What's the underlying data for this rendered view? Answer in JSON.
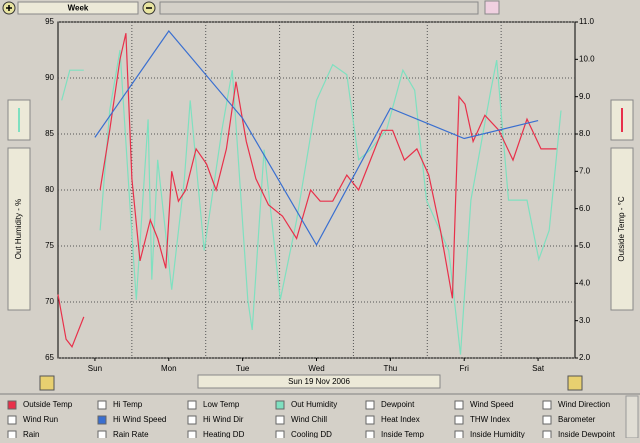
{
  "toolbar": {
    "period": "Week"
  },
  "date_label": "Sun 19 Nov 2006",
  "left_axis_title": "Out Humidity - %",
  "right_axis_title": "Outside Temp - °C",
  "chart_data": {
    "type": "line",
    "xlim": [
      -0.5,
      6.5
    ],
    "xticks": [
      {
        "value": 0,
        "label": "Sun"
      },
      {
        "value": 1,
        "label": "Mon"
      },
      {
        "value": 2,
        "label": "Tue"
      },
      {
        "value": 3,
        "label": "Wed"
      },
      {
        "value": 4,
        "label": "Thu"
      },
      {
        "value": 5,
        "label": "Fri"
      },
      {
        "value": 6,
        "label": "Sat"
      }
    ],
    "ylim": [
      65,
      95
    ],
    "yticks": [
      65,
      70,
      75,
      80,
      85,
      90,
      95
    ],
    "y2lim": [
      2,
      11
    ],
    "y2ticks": [
      {
        "value": 2,
        "label": "2.0"
      },
      {
        "value": 3,
        "label": "3.0"
      },
      {
        "value": 4,
        "label": "4.0"
      },
      {
        "value": 5,
        "label": "5.0"
      },
      {
        "value": 6,
        "label": "6.0"
      },
      {
        "value": 7,
        "label": "7.0"
      },
      {
        "value": 8,
        "label": "8.0"
      },
      {
        "value": 9,
        "label": "9.0"
      },
      {
        "value": 10,
        "label": "10.0"
      },
      {
        "value": 11,
        "label": "11.0"
      }
    ],
    "grid": true,
    "series": [
      {
        "color": "#7fe0c0",
        "axis": "y",
        "x": [
          -0.45,
          -0.34,
          -0.15,
          -0.04,
          0.07,
          0.2,
          0.34,
          0.47,
          0.56,
          0.72,
          0.77,
          0.85,
          1.04,
          1.21,
          1.29,
          1.48,
          1.72,
          1.86,
          2.07,
          2.13,
          2.29,
          2.51,
          2.73,
          3.0,
          3.22,
          3.41,
          3.57,
          3.73,
          3.95,
          4.17,
          4.33,
          4.49,
          4.79,
          4.95,
          5.09,
          5.36,
          5.44,
          5.6,
          5.85,
          6.01,
          6.15,
          6.31
        ],
        "values": [
          88.0,
          90.7,
          90.7,
          null,
          76.4,
          87.1,
          92.5,
          79.1,
          70.2,
          86.3,
          72.0,
          82.7,
          71.1,
          80.9,
          88.0,
          74.6,
          85.4,
          90.7,
          70.2,
          67.5,
          83.6,
          70.2,
          77.3,
          88.0,
          91.2,
          90.3,
          82.7,
          83.6,
          85.4,
          90.7,
          88.9,
          79.1,
          74.6,
          65.3,
          79.1,
          88.9,
          91.6,
          79.1,
          79.1,
          73.8,
          76.4,
          87.1
        ]
      },
      {
        "color": "#e8304a",
        "axis": "y2",
        "x": [
          -0.5,
          -0.39,
          -0.31,
          -0.15,
          -0.04,
          0.07,
          0.2,
          0.34,
          0.42,
          0.5,
          0.61,
          0.75,
          0.85,
          0.96,
          1.04,
          1.13,
          1.23,
          1.37,
          1.51,
          1.64,
          1.78,
          1.91,
          2.05,
          2.18,
          2.35,
          2.54,
          2.73,
          2.92,
          3.05,
          3.22,
          3.41,
          3.57,
          3.73,
          3.89,
          4.03,
          4.19,
          4.36,
          4.52,
          4.68,
          4.84,
          4.93,
          5.01,
          5.12,
          5.28,
          5.47,
          5.66,
          5.85,
          6.04,
          6.25
        ],
        "values": [
          3.7,
          2.5,
          2.3,
          3.1,
          null,
          6.5,
          8.1,
          10.0,
          10.7,
          6.8,
          4.6,
          5.7,
          5.2,
          4.4,
          7.0,
          6.2,
          6.5,
          7.6,
          7.2,
          6.5,
          7.6,
          9.4,
          7.8,
          6.8,
          6.1,
          5.8,
          5.2,
          6.5,
          6.2,
          6.2,
          6.9,
          6.5,
          7.3,
          8.1,
          8.1,
          7.3,
          7.6,
          6.9,
          5.4,
          3.6,
          9.0,
          8.8,
          7.8,
          8.5,
          8.1,
          7.3,
          8.4,
          7.6,
          7.6
        ]
      },
      {
        "color": "#3a6fd0",
        "axis": "y",
        "x": [
          0,
          1,
          2,
          3,
          4,
          5,
          6
        ],
        "values": [
          84.7,
          94.2,
          86.4,
          75.1,
          87.3,
          84.6,
          86.2
        ]
      }
    ]
  },
  "checkboxes": [
    {
      "label": "Outside Temp",
      "color": "#e8304a"
    },
    {
      "label": "Hi Temp"
    },
    {
      "label": "Low Temp"
    },
    {
      "label": "Out Humidity",
      "color": "#7fe0c0"
    },
    {
      "label": "Dewpoint"
    },
    {
      "label": "Wind Speed"
    },
    {
      "label": "Wind Direction"
    },
    {
      "label": "Wind Run"
    },
    {
      "label": "Hi Wind Speed",
      "color": "#3a6fd0"
    },
    {
      "label": "Hi Wind Dir"
    },
    {
      "label": "Wind Chill"
    },
    {
      "label": "Heat Index"
    },
    {
      "label": "THW Index"
    },
    {
      "label": "Barometer"
    },
    {
      "label": "Rain"
    },
    {
      "label": "Rain Rate"
    },
    {
      "label": "Heating DD"
    },
    {
      "label": "Cooling DD"
    },
    {
      "label": "Inside Temp"
    },
    {
      "label": "Inside Humidity"
    },
    {
      "label": "Inside Dewpoint"
    }
  ]
}
